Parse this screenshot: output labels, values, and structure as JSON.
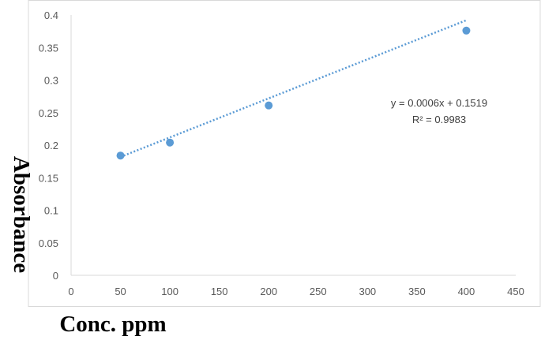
{
  "chart_data": {
    "type": "scatter",
    "title": "",
    "xlabel": "Conc. ppm",
    "ylabel": "Absorbance",
    "xlim": [
      0,
      450
    ],
    "ylim": [
      0,
      0.4
    ],
    "xticks": [
      0,
      50,
      100,
      150,
      200,
      250,
      300,
      350,
      400,
      450
    ],
    "yticks": [
      "0",
      "0.05",
      "0.1",
      "0.15",
      "0.2",
      "0.25",
      "0.3",
      "0.35",
      "0.4"
    ],
    "grid": false,
    "legend": "none",
    "series": [
      {
        "points": [
          {
            "x": 50,
            "y": 0.184
          },
          {
            "x": 100,
            "y": 0.204
          },
          {
            "x": 200,
            "y": 0.261
          },
          {
            "x": 400,
            "y": 0.376
          }
        ],
        "color": "#5b9bd5"
      }
    ],
    "trendline": {
      "type": "linear",
      "slope": 0.0006,
      "intercept": 0.1519,
      "x_range": [
        50,
        400
      ],
      "color": "#5b9bd5",
      "style": "dotted",
      "equation_label": "y = 0.0006x + 0.1519",
      "r2_label": "R² = 0.9983"
    }
  }
}
